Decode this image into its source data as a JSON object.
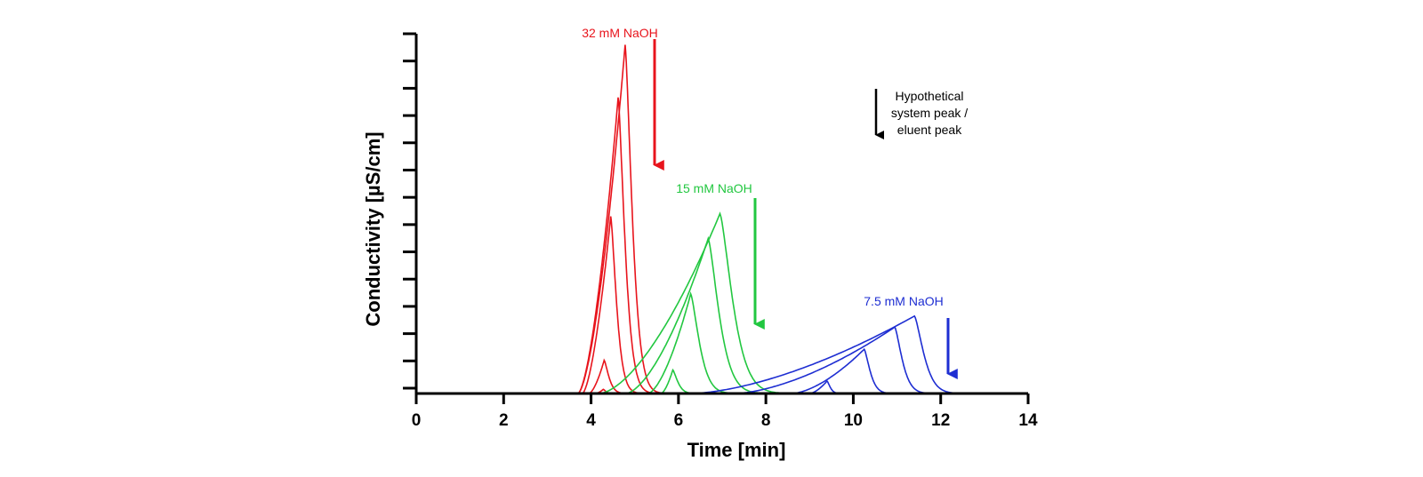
{
  "chart_data": {
    "type": "line",
    "title": "",
    "xlabel": "Time [min]",
    "ylabel": "Conductivity [µS/cm]",
    "xlim": [
      0,
      14
    ],
    "ylim": [
      0,
      13
    ],
    "x_ticks": [
      "0",
      "2",
      "4",
      "6",
      "8",
      "10",
      "12",
      "14"
    ],
    "y_ticks_count": 14,
    "grid": false,
    "groups": [
      {
        "label": "32 mM NaOH",
        "color": "#e8141c",
        "system_peak_time": 5.7,
        "peaks": [
          {
            "start": 3.7,
            "apex_time": 4.78,
            "height": 12.6,
            "end": 5.7
          },
          {
            "start": 3.7,
            "apex_time": 4.62,
            "height": 10.7,
            "end": 5.5
          },
          {
            "start": 3.8,
            "apex_time": 4.45,
            "height": 6.4,
            "end": 5.2
          },
          {
            "start": 3.95,
            "apex_time": 4.3,
            "height": 1.2,
            "end": 4.9
          },
          {
            "start": 4.1,
            "apex_time": 4.28,
            "height": 0.15,
            "end": 4.6
          }
        ]
      },
      {
        "label": "15 mM NaOH",
        "color": "#22c740",
        "system_peak_time": 8.0,
        "peaks": [
          {
            "start": 4.2,
            "apex_time": 6.95,
            "height": 6.5,
            "end": 8.6
          },
          {
            "start": 4.8,
            "apex_time": 6.68,
            "height": 5.6,
            "end": 8.1
          },
          {
            "start": 5.3,
            "apex_time": 6.28,
            "height": 3.6,
            "end": 7.4
          },
          {
            "start": 5.6,
            "apex_time": 5.87,
            "height": 0.85,
            "end": 6.5
          }
        ]
      },
      {
        "label": "7.5 mM NaOH",
        "color": "#1e2ed2",
        "system_peak_time": 12.35,
        "peaks": [
          {
            "start": 6.3,
            "apex_time": 11.4,
            "height": 2.8,
            "end": 12.6
          },
          {
            "start": 7.3,
            "apex_time": 10.95,
            "height": 2.4,
            "end": 11.9
          },
          {
            "start": 8.6,
            "apex_time": 10.25,
            "height": 1.6,
            "end": 11.0
          },
          {
            "start": 9.0,
            "apex_time": 9.4,
            "height": 0.45,
            "end": 9.8
          }
        ]
      }
    ],
    "legend_note": {
      "text_lines": [
        "Hypothetical",
        "system peak /",
        "eluent peak"
      ],
      "color": "#000000",
      "placement": "top-right"
    }
  }
}
